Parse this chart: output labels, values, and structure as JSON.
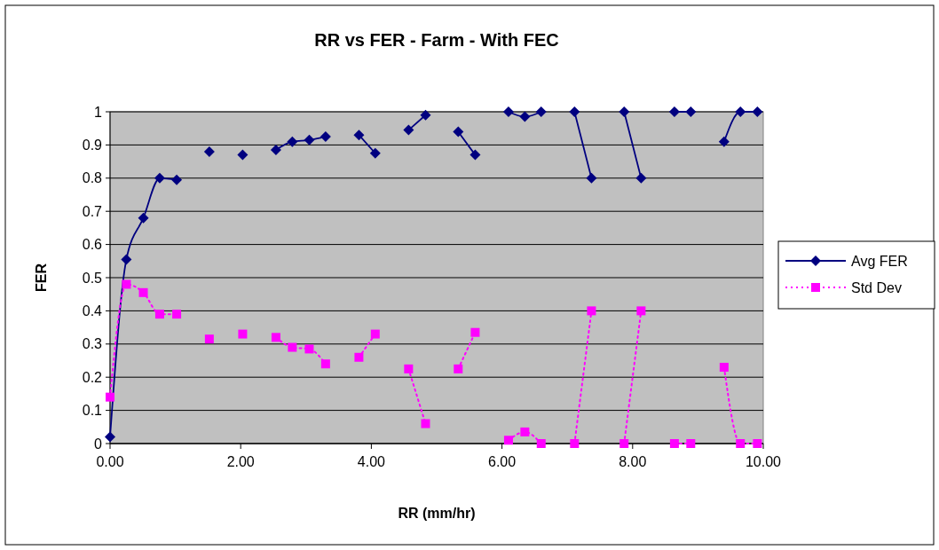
{
  "chart_data": {
    "type": "line",
    "title": "RR vs FER - Farm - With FEC",
    "xlabel": "RR (mm/hr)",
    "ylabel": "FER",
    "x": [
      0,
      0.25,
      0.51,
      0.76,
      1.02,
      1.27,
      1.52,
      1.78,
      2.03,
      2.29,
      2.54,
      2.79,
      3.05,
      3.3,
      3.56,
      3.81,
      4.06,
      4.32,
      4.57,
      4.83,
      5.08,
      5.33,
      5.59,
      5.84,
      6.1,
      6.35,
      6.6,
      6.86,
      7.11,
      7.37,
      7.62,
      7.87,
      8.13,
      8.38,
      8.64,
      8.89,
      9.14,
      9.4,
      9.65,
      9.91
    ],
    "series": [
      {
        "name": "Avg FER",
        "color": "#000080",
        "marker": "diamond",
        "line_style": "solid",
        "values": [
          0.02,
          0.555,
          0.68,
          0.8,
          0.795,
          null,
          0.88,
          null,
          0.87,
          null,
          0.885,
          0.91,
          0.915,
          0.925,
          null,
          0.93,
          0.875,
          null,
          0.945,
          0.99,
          null,
          0.94,
          0.87,
          null,
          1,
          0.985,
          1,
          null,
          1,
          0.8,
          null,
          1,
          0.8,
          null,
          1,
          1,
          null,
          0.91,
          1,
          1
        ]
      },
      {
        "name": "Std Dev",
        "color": "#ff00ff",
        "marker": "square",
        "line_style": "dotted",
        "values": [
          0.14,
          0.48,
          0.455,
          0.39,
          0.39,
          null,
          0.315,
          null,
          0.33,
          null,
          0.32,
          0.29,
          0.285,
          0.24,
          null,
          0.26,
          0.33,
          null,
          0.225,
          0.06,
          null,
          0.225,
          0.335,
          null,
          0.01,
          0.035,
          0,
          null,
          0,
          0.4,
          null,
          0,
          0.4,
          null,
          0,
          0,
          null,
          0.23,
          0,
          0
        ]
      }
    ],
    "xlim": [
      0,
      10
    ],
    "xticks": [
      {
        "value": 0,
        "label": "0.00"
      },
      {
        "value": 2,
        "label": "2.00"
      },
      {
        "value": 4,
        "label": "4.00"
      },
      {
        "value": 6,
        "label": "6.00"
      },
      {
        "value": 8,
        "label": "8.00"
      },
      {
        "value": 10,
        "label": "10.00"
      }
    ],
    "ylim": [
      0,
      1
    ],
    "yticks": [
      0,
      0.1,
      0.2,
      0.3,
      0.4,
      0.5,
      0.6,
      0.7,
      0.8,
      0.9,
      1
    ],
    "grid": "y",
    "legend": "right"
  }
}
